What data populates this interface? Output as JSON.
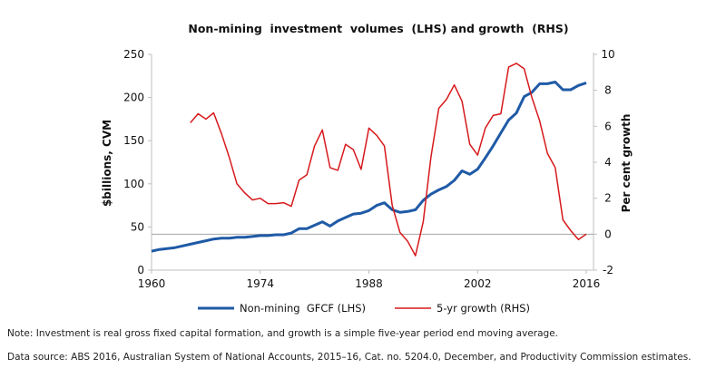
{
  "chart_data": {
    "type": "line",
    "title": "Non-mining  investment  volumes  (LHS) and growth  (RHS)",
    "ylabel_left": "$billions, CVM",
    "ylabel_right": "Per cent growth",
    "xlim": [
      1960,
      2016
    ],
    "ylim_left": [
      0,
      250
    ],
    "ylim_right": [
      -2,
      10
    ],
    "x_ticks": [
      "1960",
      "1974",
      "1988",
      "2002",
      "2016"
    ],
    "y_left_ticks": [
      "0",
      "50",
      "100",
      "150",
      "200",
      "250"
    ],
    "y_right_ticks": [
      "-2",
      "0",
      "2",
      "4",
      "6",
      "8",
      "10"
    ],
    "grid": false,
    "reference_line_right": 0,
    "legend_position": "bottom",
    "series": [
      {
        "name": "Non-mining  GFCF (LHS)",
        "axis": "left",
        "color": "#1f5aa6",
        "x": [
          1960,
          1961,
          1962,
          1963,
          1964,
          1965,
          1966,
          1967,
          1968,
          1969,
          1970,
          1971,
          1972,
          1973,
          1974,
          1975,
          1976,
          1977,
          1978,
          1979,
          1980,
          1981,
          1982,
          1983,
          1984,
          1985,
          1986,
          1987,
          1988,
          1989,
          1990,
          1991,
          1992,
          1993,
          1994,
          1995,
          1996,
          1997,
          1998,
          1999,
          2000,
          2001,
          2002,
          2003,
          2004,
          2005,
          2006,
          2007,
          2008,
          2009,
          2010,
          2011,
          2012,
          2013,
          2014,
          2015,
          2016
        ],
        "values": [
          22,
          24,
          25,
          26,
          28,
          30,
          32,
          34,
          36,
          37,
          37,
          38,
          38,
          39,
          40,
          40,
          41,
          41,
          43,
          48,
          48,
          52,
          56,
          51,
          57,
          61,
          65,
          66,
          69,
          75,
          78,
          70,
          67,
          68,
          70,
          81,
          88,
          93,
          97,
          104,
          115,
          111,
          117,
          130,
          144,
          159,
          174,
          182,
          201,
          206,
          216,
          216,
          218,
          209,
          209,
          214,
          217
        ]
      },
      {
        "name": "5-yr growth (RHS)",
        "axis": "right",
        "color": "#d7191c",
        "x": [
          1965,
          1966,
          1967,
          1968,
          1969,
          1970,
          1971,
          1972,
          1973,
          1974,
          1975,
          1976,
          1977,
          1978,
          1979,
          1980,
          1981,
          1982,
          1983,
          1984,
          1985,
          1986,
          1987,
          1988,
          1989,
          1990,
          1991,
          1992,
          1993,
          1994,
          1995,
          1996,
          1997,
          1998,
          1999,
          2000,
          2001,
          2002,
          2003,
          2004,
          2005,
          2006,
          2007,
          2008,
          2009,
          2010,
          2011,
          2012,
          2013,
          2014,
          2015,
          2016
        ],
        "values": [
          6.2,
          6.7,
          6.4,
          6.75,
          5.6,
          4.3,
          2.8,
          2.3,
          1.9,
          2.0,
          1.7,
          1.7,
          1.75,
          1.55,
          3.0,
          3.3,
          4.9,
          5.8,
          3.7,
          3.55,
          5.0,
          4.7,
          3.6,
          5.9,
          5.5,
          4.9,
          1.6,
          0.1,
          -0.4,
          -1.2,
          0.7,
          4.3,
          7.0,
          7.5,
          8.3,
          7.4,
          5.0,
          4.4,
          5.9,
          6.6,
          6.7,
          9.3,
          9.5,
          9.2,
          7.6,
          6.3,
          4.5,
          3.7,
          0.8,
          0.2,
          -0.3,
          0.0
        ]
      }
    ]
  },
  "notes": {
    "note": "Note: Investment is real gross fixed capital formation, and growth is a simple five-year period end moving average.",
    "source": "Data source: ABS 2016, Australian System of National Accounts, 2015–16, Cat. no. 5204.0, December, and Productivity Commission estimates."
  }
}
